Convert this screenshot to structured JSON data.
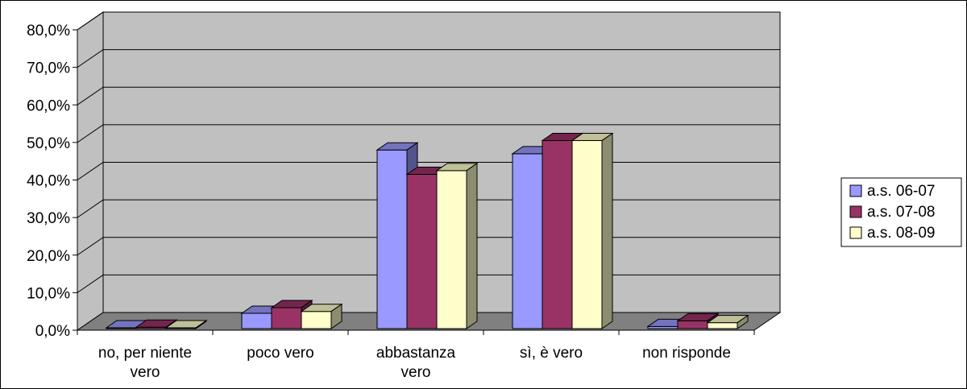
{
  "chart_data": {
    "type": "bar",
    "categories": [
      "no, per niente vero",
      "poco vero",
      "abbastanza vero",
      "sì, è vero",
      "non risponde"
    ],
    "category_lines": [
      [
        "no, per niente",
        "vero"
      ],
      [
        "poco vero"
      ],
      [
        "abbastanza",
        "vero"
      ],
      [
        "sì, è vero"
      ],
      [
        "non risponde"
      ]
    ],
    "series": [
      {
        "name": "a.s. 06-07",
        "color": "#9999FF",
        "values": [
          0.5,
          4.5,
          48.0,
          47.0,
          1.0
        ]
      },
      {
        "name": "a.s. 07-08",
        "color": "#993366",
        "values": [
          0.8,
          6.0,
          41.5,
          50.5,
          2.5
        ]
      },
      {
        "name": "a.s. 08-09",
        "color": "#FFFFCC",
        "values": [
          0.5,
          5.0,
          42.5,
          50.5,
          2.0
        ]
      }
    ],
    "y_ticks": [
      "0,0%",
      "10,0%",
      "20,0%",
      "30,0%",
      "40,0%",
      "50,0%",
      "60,0%",
      "70,0%",
      "80,0%"
    ],
    "ylim": [
      0,
      80
    ],
    "y_unit": "%",
    "grid": true,
    "legend_position": "right",
    "three_d": true,
    "wall_color": "#C0C0C0",
    "floor_color": "#808080",
    "title": "",
    "xlabel": "",
    "ylabel": ""
  }
}
